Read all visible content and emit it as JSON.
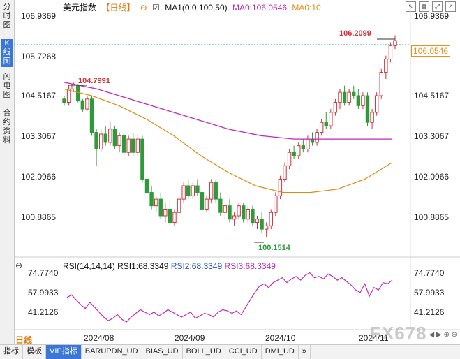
{
  "sidebar": {
    "tabs": [
      "分时图",
      "K线图",
      "闪电图",
      "合约资料"
    ],
    "active": 1
  },
  "header": {
    "title": "美元指数",
    "period": "【日线】",
    "ma_label": "MA1(0,0,100,50)",
    "ma0": "MA0:106.0546",
    "ma10": "MA0:10"
  },
  "toolbar_icons": [
    "settings-icon",
    "checkbox-icon",
    "arrow-icon",
    "grid-icon",
    "export-icon"
  ],
  "price_axis": [
    "106.9369",
    "105.7268",
    "104.5167",
    "103.3067",
    "102.0966",
    "100.8865"
  ],
  "last_price": "106.0546",
  "annotations": {
    "high": "106.2099",
    "peak": "104.7991",
    "low": "100.1514"
  },
  "rsi": {
    "header": "RSI(14,14,14)",
    "rsi1": "RSI1:68.3349",
    "rsi2": "RSI2:68.3349",
    "rsi3": "RSI3:68.3349",
    "axis": [
      "74.7740",
      "57.9933",
      "41.2126"
    ]
  },
  "dates": [
    "2024/08",
    "2024/09",
    "2024/10",
    "2024/11"
  ],
  "period_tag": "日线",
  "bottom_tabs": [
    "指标",
    "模板",
    "VIP指标",
    "BARUPDN_UD",
    "BIAS_UD",
    "BOLL_UD",
    "CCI_UD",
    "DMI_UD",
    "»"
  ],
  "bottom_active": 2,
  "watermark": "FX678",
  "colors": {
    "up": "#d0323a",
    "down": "#2f9a3a",
    "ma_slow": "#c22ab8",
    "ma_fast": "#e08a12",
    "rsi": "#c22ab8"
  },
  "chart_data": {
    "type": "candlestick",
    "ylim": [
      99.9,
      107.1
    ],
    "candles": [
      [
        104.3,
        104.4,
        104.1,
        104.2
      ],
      [
        104.2,
        104.7,
        104.1,
        104.6
      ],
      [
        104.6,
        104.8,
        104.5,
        104.75
      ],
      [
        104.7,
        104.75,
        104.2,
        104.25
      ],
      [
        104.25,
        104.3,
        103.9,
        104.0
      ],
      [
        104.0,
        104.4,
        103.95,
        104.3
      ],
      [
        104.3,
        104.4,
        103.2,
        103.3
      ],
      [
        103.3,
        103.4,
        102.3,
        102.8
      ],
      [
        102.8,
        103.4,
        102.7,
        103.25
      ],
      [
        103.25,
        103.5,
        102.9,
        103.0
      ],
      [
        103.0,
        103.6,
        102.9,
        103.4
      ],
      [
        103.4,
        103.5,
        102.8,
        102.9
      ],
      [
        102.9,
        103.3,
        102.7,
        103.2
      ],
      [
        103.2,
        103.3,
        102.5,
        102.7
      ],
      [
        102.7,
        103.2,
        102.6,
        103.1
      ],
      [
        103.1,
        103.3,
        102.6,
        102.7
      ],
      [
        102.7,
        103.2,
        102.6,
        103.1
      ],
      [
        103.1,
        103.2,
        101.8,
        101.9
      ],
      [
        101.9,
        102.1,
        101.4,
        101.5
      ],
      [
        101.5,
        101.7,
        101.0,
        101.1
      ],
      [
        101.1,
        101.4,
        100.9,
        101.3
      ],
      [
        101.3,
        101.5,
        100.7,
        100.8
      ],
      [
        100.8,
        101.2,
        100.6,
        101.0
      ],
      [
        101.0,
        101.3,
        100.5,
        100.6
      ],
      [
        100.6,
        101.0,
        100.5,
        100.9
      ],
      [
        100.9,
        101.4,
        100.8,
        101.3
      ],
      [
        101.3,
        101.8,
        101.2,
        101.7
      ],
      [
        101.7,
        101.9,
        101.3,
        101.4
      ],
      [
        101.4,
        101.8,
        101.3,
        101.7
      ],
      [
        101.7,
        101.9,
        101.4,
        101.5
      ],
      [
        101.5,
        101.6,
        100.9,
        101.0
      ],
      [
        101.0,
        101.4,
        100.9,
        101.3
      ],
      [
        101.3,
        101.9,
        101.2,
        101.8
      ],
      [
        101.8,
        101.9,
        101.2,
        101.3
      ],
      [
        101.3,
        101.5,
        100.8,
        100.9
      ],
      [
        100.9,
        101.2,
        100.7,
        101.1
      ],
      [
        101.1,
        101.3,
        100.6,
        100.7
      ],
      [
        100.7,
        100.9,
        100.5,
        100.8
      ],
      [
        100.8,
        101.2,
        100.7,
        101.1
      ],
      [
        101.1,
        101.2,
        100.6,
        100.7
      ],
      [
        100.7,
        101.1,
        100.6,
        101.0
      ],
      [
        101.0,
        101.1,
        100.5,
        100.6
      ],
      [
        100.6,
        100.8,
        100.4,
        100.7
      ],
      [
        100.7,
        100.9,
        100.3,
        100.4
      ],
      [
        100.4,
        100.6,
        100.15,
        100.5
      ],
      [
        100.5,
        101.0,
        100.4,
        100.9
      ],
      [
        100.9,
        101.5,
        100.8,
        101.4
      ],
      [
        101.4,
        102.0,
        101.3,
        101.9
      ],
      [
        101.9,
        102.4,
        101.8,
        102.3
      ],
      [
        102.3,
        102.8,
        102.2,
        102.7
      ],
      [
        102.7,
        102.9,
        102.5,
        102.6
      ],
      [
        102.6,
        103.0,
        102.5,
        102.9
      ],
      [
        102.9,
        103.1,
        102.7,
        102.8
      ],
      [
        102.8,
        103.2,
        102.7,
        103.1
      ],
      [
        103.1,
        103.3,
        102.9,
        103.0
      ],
      [
        103.0,
        103.4,
        102.9,
        103.3
      ],
      [
        103.3,
        103.7,
        103.2,
        103.6
      ],
      [
        103.6,
        103.9,
        103.4,
        103.5
      ],
      [
        103.5,
        104.0,
        103.4,
        103.9
      ],
      [
        103.9,
        104.3,
        103.8,
        104.2
      ],
      [
        104.2,
        104.6,
        104.0,
        104.5
      ],
      [
        104.5,
        104.7,
        104.1,
        104.2
      ],
      [
        104.2,
        104.6,
        104.1,
        104.5
      ],
      [
        104.5,
        104.7,
        104.3,
        104.4
      ],
      [
        104.4,
        104.6,
        104.0,
        104.1
      ],
      [
        104.1,
        104.5,
        104.0,
        104.4
      ],
      [
        104.4,
        104.5,
        103.5,
        103.6
      ],
      [
        103.6,
        104.0,
        103.4,
        103.9
      ],
      [
        103.9,
        104.5,
        103.8,
        104.4
      ],
      [
        104.4,
        105.2,
        104.3,
        105.1
      ],
      [
        105.1,
        105.6,
        104.9,
        105.5
      ],
      [
        105.5,
        106.0,
        105.4,
        105.9
      ],
      [
        105.9,
        106.21,
        105.8,
        106.05
      ]
    ],
    "ma_fast": [
      104.6,
      104.4,
      104.1,
      103.7,
      103.2,
      102.6,
      102.1,
      101.7,
      101.5,
      101.5,
      101.6,
      101.9,
      102.4
    ],
    "ma_slow": [
      104.8,
      104.6,
      104.3,
      104.0,
      103.7,
      103.4,
      103.2,
      103.1,
      103.1,
      103.1,
      103.1
    ]
  },
  "rsi_data": {
    "ylim": [
      30,
      80
    ],
    "values": [
      54,
      56,
      52,
      48,
      45,
      50,
      46,
      42,
      38,
      35,
      37,
      40,
      36,
      34,
      38,
      41,
      44,
      42,
      40,
      42,
      39,
      41,
      44,
      42,
      40,
      38,
      40,
      42,
      37,
      39,
      41,
      40,
      38,
      42,
      44,
      43,
      41,
      43,
      40,
      46,
      52,
      58,
      63,
      65,
      62,
      66,
      68,
      70,
      66,
      69,
      71,
      68,
      72,
      74,
      70,
      71,
      69,
      73,
      71,
      68,
      70,
      67,
      64,
      60,
      58,
      65,
      55,
      62,
      60,
      66,
      65,
      68
    ]
  }
}
